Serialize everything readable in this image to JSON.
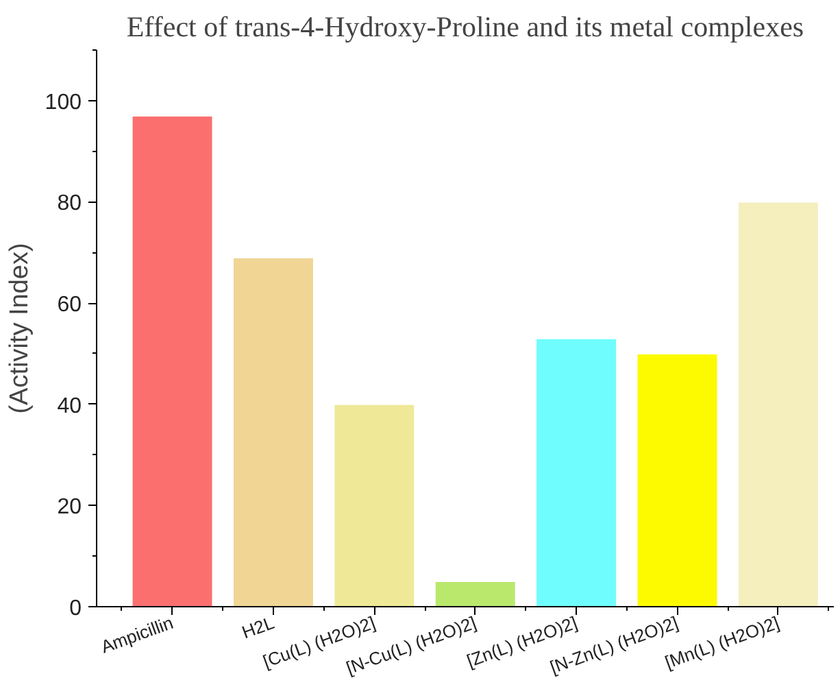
{
  "chart_data": {
    "type": "bar",
    "title": "Effect of trans-4-Hydroxy-Proline and its metal complexes",
    "ylabel": "(Activity Index)",
    "categories": [
      "Ampicillin",
      "H2L",
      "[Cu(L) (H2O)2]",
      "[N-Cu(L) (H2O)2]",
      "[Zn(L) (H2O)2]",
      "[N-Zn(L) (H2O)2]",
      "[Mn(L) (H2O)2]"
    ],
    "values": [
      97,
      69,
      40,
      5,
      53,
      50,
      80
    ],
    "colors": [
      "#fb6f6f",
      "#f0d595",
      "#efe997",
      "#b9e86d",
      "#6ffdfd",
      "#fdfa00",
      "#f4efbd"
    ],
    "ylim": [
      0,
      110
    ],
    "yticks": [
      0,
      20,
      40,
      60,
      80,
      100
    ],
    "grid": false
  }
}
